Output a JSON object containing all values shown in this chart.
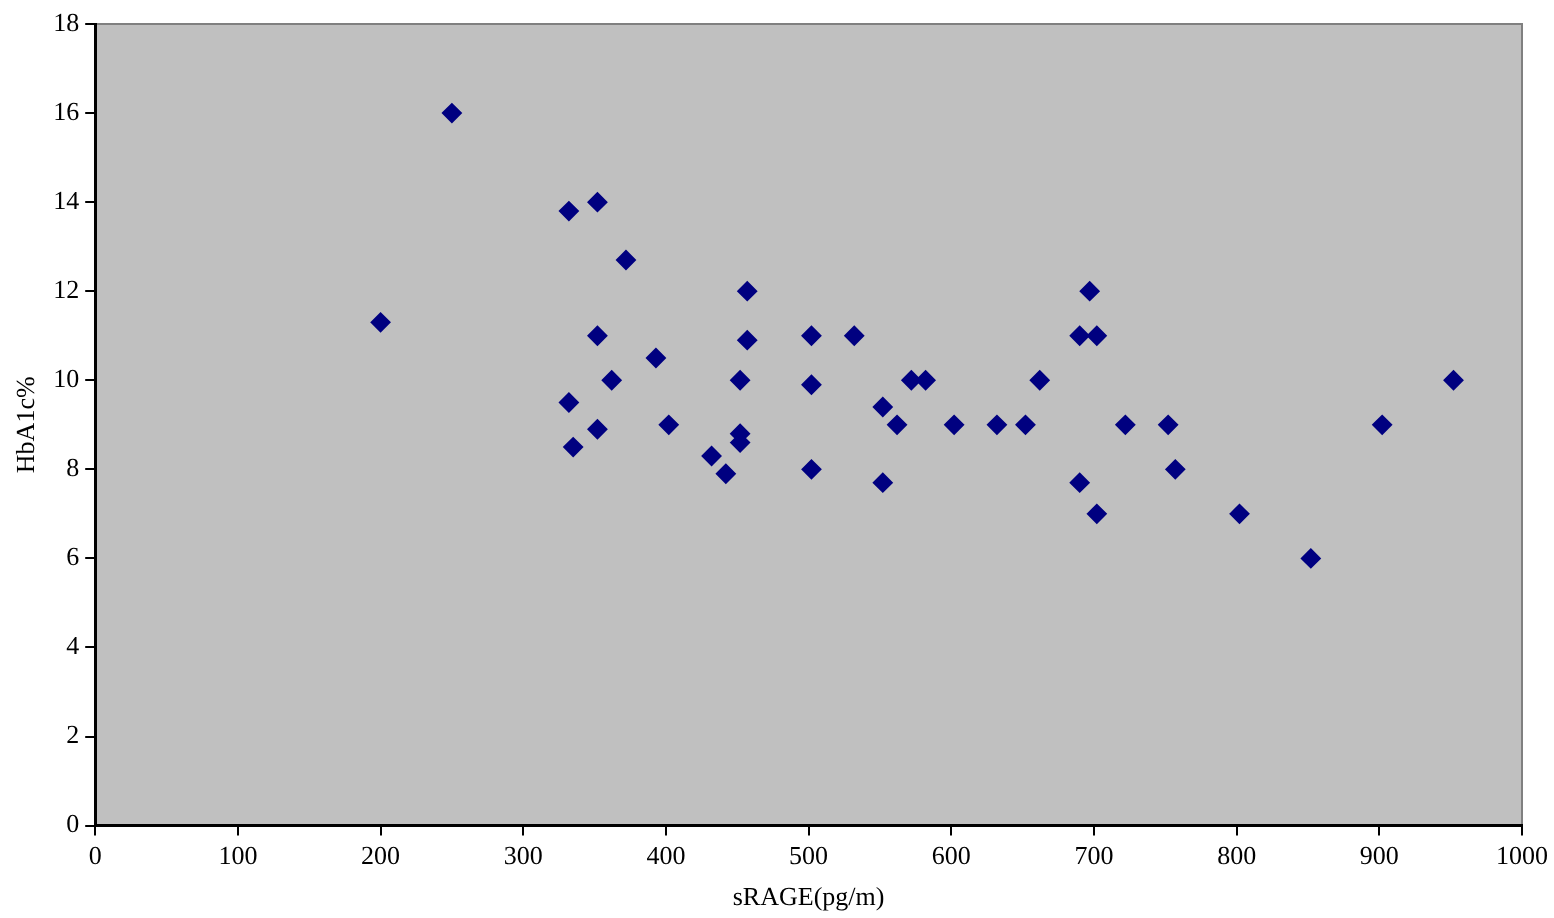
{
  "chart_data": {
    "type": "scatter",
    "xlabel": "sRAGE(pg/m)",
    "ylabel": "HbA1c%",
    "xlim": [
      0,
      1000
    ],
    "xticks": [
      0,
      100,
      200,
      300,
      400,
      500,
      600,
      700,
      800,
      900,
      1000
    ],
    "ylim": [
      0,
      18
    ],
    "yticks": [
      0,
      2,
      4,
      6,
      8,
      10,
      12,
      14,
      16,
      18
    ],
    "grid": false,
    "legend": false,
    "marker": "diamond",
    "series": [
      {
        "color": "#000080",
        "x": [
          200,
          250,
          332,
          352,
          372,
          332,
          335,
          352,
          352,
          362,
          393,
          402,
          432,
          442,
          452,
          452,
          452,
          457,
          457,
          502,
          502,
          502,
          532,
          552,
          552,
          562,
          572,
          582,
          602,
          632,
          652,
          662,
          690,
          690,
          697,
          702,
          702,
          722,
          752,
          757,
          802,
          852,
          902,
          952
        ],
        "values": [
          11.3,
          16,
          13.8,
          14,
          12.7,
          9.5,
          8.5,
          11,
          8.9,
          10,
          10.5,
          9,
          8.3,
          7.9,
          10,
          8.8,
          8.6,
          12,
          10.9,
          11,
          9.9,
          8,
          11,
          9.4,
          7.7,
          9,
          10,
          10,
          9,
          9,
          9,
          10,
          7.7,
          11,
          12,
          11,
          7,
          9,
          9,
          8,
          7,
          6,
          9,
          10
        ]
      }
    ]
  }
}
